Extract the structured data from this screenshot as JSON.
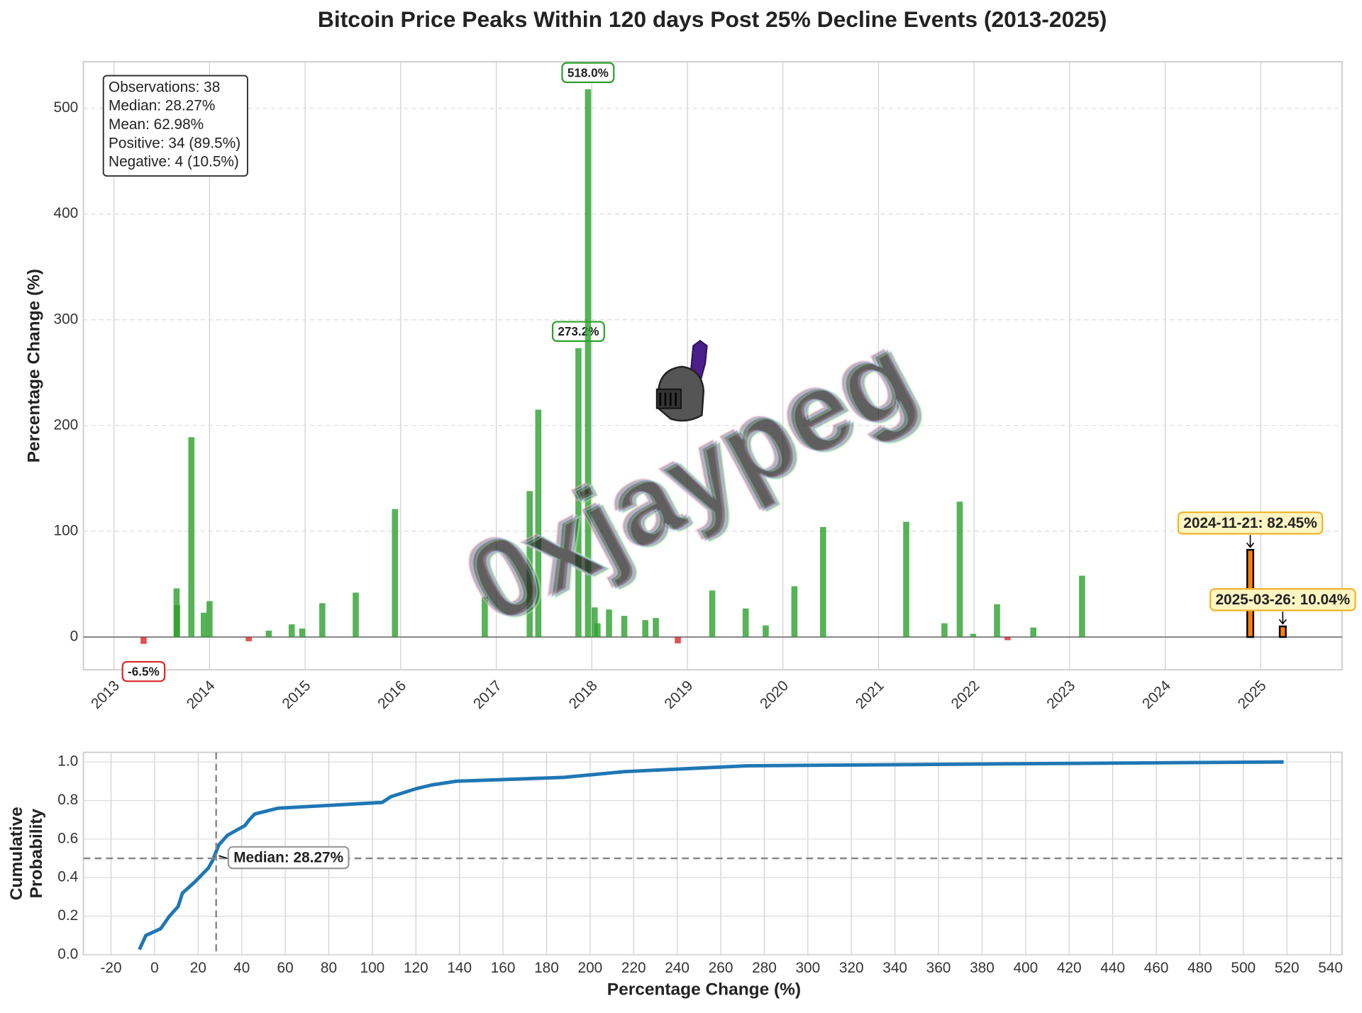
{
  "title": "Bitcoin Price Peaks Within 120 days Post 25% Decline Events (2013-2025)",
  "watermark": "0xjaypeg",
  "chart_data": [
    {
      "type": "bar",
      "ylabel": "Percentage Change (%)",
      "xlim": [
        2012.68,
        2025.85
      ],
      "xticks": [
        2013,
        2014,
        2015,
        2016,
        2017,
        2018,
        2019,
        2020,
        2021,
        2022,
        2023,
        2024,
        2025
      ],
      "ylim": [
        -31,
        544
      ],
      "yticks": [
        0,
        100,
        200,
        300,
        400,
        500
      ],
      "grid": true,
      "stats": [
        "Observations: 38",
        "Median: 28.27%",
        "Mean: 62.98%",
        "Positive: 34 (89.5%)",
        "Negative: 4 (10.5%)"
      ],
      "series": [
        {
          "color": "#2ca02c",
          "x": [
            2013.655,
            2013.66,
            2013.81,
            2013.94,
            2014.0,
            2014.62,
            2014.86,
            2014.97,
            2015.18,
            2015.53,
            2015.94,
            2016.88,
            2017.35,
            2017.44,
            2017.86,
            2017.96,
            2018.03,
            2018.06,
            2018.18,
            2018.34,
            2018.56,
            2018.67,
            2019.26,
            2019.61,
            2019.82,
            2020.12,
            2020.42,
            2021.29,
            2021.69,
            2021.85,
            2021.99,
            2022.24,
            2022.62,
            2023.13
          ],
          "values": [
            46,
            30,
            189,
            23,
            34,
            6,
            12,
            8,
            32,
            42,
            121,
            38,
            138,
            215,
            273.2,
            518.0,
            28,
            13,
            26,
            20,
            16,
            18,
            44,
            27,
            11,
            48,
            104,
            109,
            13,
            128,
            3,
            31,
            9,
            58
          ],
          "value_labels": [
            null,
            null,
            null,
            null,
            null,
            null,
            null,
            null,
            null,
            null,
            null,
            null,
            null,
            null,
            "273.2%",
            "518.0%",
            null,
            null,
            null,
            null,
            null,
            null,
            null,
            null,
            null,
            null,
            null,
            null,
            null,
            null,
            null,
            null,
            null,
            null
          ]
        },
        {
          "color": "#d62728",
          "x": [
            2013.31,
            2014.41,
            2018.9,
            2022.35
          ],
          "values": [
            -6.5,
            -4,
            -6,
            -3
          ],
          "value_labels": [
            "-6.5%",
            null,
            null,
            null
          ]
        },
        {
          "color": "#ff7f0e",
          "x": [
            2024.89,
            2025.23
          ],
          "values": [
            82.45,
            10.04
          ],
          "value_labels": [
            "2024-11-21: 82.45%",
            "2025-03-26: 10.04%"
          ]
        }
      ]
    },
    {
      "type": "line",
      "xlabel": "Percentage Change (%)",
      "ylabel": [
        "Cumulative",
        "Probability"
      ],
      "xlim": [
        -32.7,
        545.3
      ],
      "xticks": [
        -20,
        0,
        20,
        40,
        60,
        80,
        100,
        120,
        140,
        160,
        180,
        200,
        220,
        240,
        260,
        280,
        300,
        320,
        340,
        360,
        380,
        400,
        420,
        440,
        460,
        480,
        500,
        520,
        540
      ],
      "ylim": [
        0,
        1.05
      ],
      "yticks": [
        {
          "value": 0,
          "label": "0.0"
        },
        {
          "value": 0.2,
          "label": "0.2"
        },
        {
          "value": 0.4,
          "label": "0.4"
        },
        {
          "value": 0.6,
          "label": "0.6"
        },
        {
          "value": 0.8,
          "label": "0.8"
        },
        {
          "value": 1,
          "label": "1.0"
        }
      ],
      "grid": true,
      "color": "#1f77b4",
      "x": [
        -7,
        -4,
        2.8,
        6.8,
        10.8,
        12.8,
        18.7,
        24.7,
        26.7,
        29.5,
        33.5,
        41.5,
        43.5,
        46,
        56.6,
        104.5,
        108.5,
        119.7,
        127,
        138.4,
        188,
        216,
        272,
        388,
        518.5
      ],
      "values": [
        0.027,
        0.1,
        0.135,
        0.2,
        0.25,
        0.32,
        0.38,
        0.45,
        0.49,
        0.57,
        0.62,
        0.67,
        0.7,
        0.73,
        0.76,
        0.79,
        0.82,
        0.86,
        0.88,
        0.9,
        0.92,
        0.95,
        0.98,
        0.99,
        1.0
      ],
      "median": 28.27,
      "hline": 0.5,
      "median_label": "Median: 28.27%"
    }
  ]
}
